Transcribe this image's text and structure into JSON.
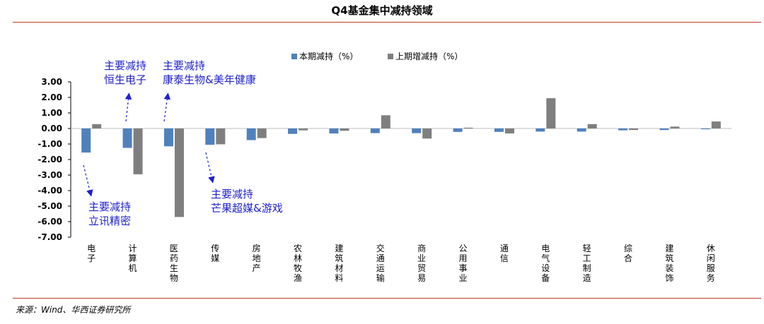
{
  "header": {
    "title": "Q4基金集中减持领域"
  },
  "footer": {
    "source": "来源：Wind、华西证券研究所"
  },
  "colors": {
    "current": "#4f81bd",
    "previous": "#7f7f7f",
    "annotation": "#1f1fcf",
    "rule": "#c0392b"
  },
  "chart_data": {
    "type": "bar",
    "categories": [
      "电子",
      "计算机",
      "医药生物",
      "传媒",
      "房地产",
      "农林牧渔",
      "建筑材料",
      "交通运输",
      "商业贸易",
      "公用事业",
      "通信",
      "电气设备",
      "轻工制造",
      "综合",
      "建筑装饰",
      "休闲服务"
    ],
    "series": [
      {
        "name": "本期减持（%）",
        "values": [
          -1.55,
          -1.25,
          -1.15,
          -1.05,
          -0.75,
          -0.35,
          -0.32,
          -0.3,
          -0.3,
          -0.22,
          -0.22,
          -0.2,
          -0.2,
          -0.12,
          -0.1,
          -0.05
        ]
      },
      {
        "name": "上期增减持（%）",
        "values": [
          0.28,
          -2.95,
          -5.7,
          -1.02,
          -0.62,
          -0.12,
          -0.15,
          0.85,
          -0.65,
          0.05,
          -0.32,
          1.95,
          0.28,
          -0.1,
          0.12,
          0.45
        ]
      }
    ],
    "ylim": [
      -7.0,
      3.0
    ],
    "yticks": [
      "3.00",
      "2.00",
      "1.00",
      "0.00",
      "-1.00",
      "-2.00",
      "-3.00",
      "-4.00",
      "-5.00",
      "-6.00",
      "-7.00"
    ],
    "legend_position": "top-center",
    "annotations": [
      {
        "line1": "主要减持",
        "line2": "恒生电子"
      },
      {
        "line1": "主要减持",
        "line2": "康泰生物&美年健康"
      },
      {
        "line1": "主要减持",
        "line2": "立讯精密"
      },
      {
        "line1": "主要减持",
        "line2": "芒果超媒&游戏"
      }
    ]
  }
}
